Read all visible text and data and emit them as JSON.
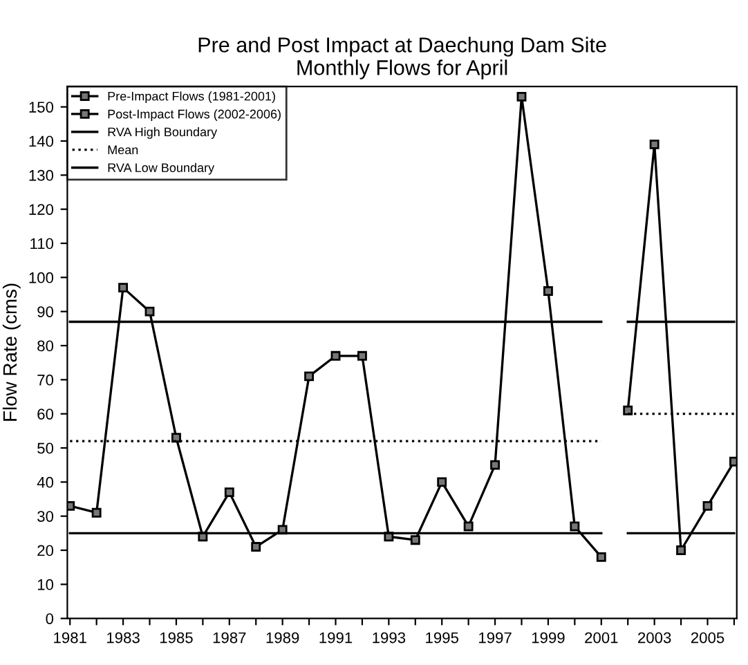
{
  "chart_data": {
    "type": "line",
    "title": "Pre and Post Impact at Daechung Dam Site\nMonthly Flows for April",
    "ylabel": "Flow Rate (cms)",
    "xlim": [
      1980.9,
      2006.1
    ],
    "xticks": [
      1981,
      {
        "value": 1982,
        "label": null
      },
      1983,
      {
        "value": 1984,
        "label": null
      },
      1985,
      {
        "value": 1986,
        "label": null
      },
      1987,
      {
        "value": 1988,
        "label": null
      },
      1989,
      {
        "value": 1990,
        "label": null
      },
      1991,
      {
        "value": 1992,
        "label": null
      },
      1993,
      {
        "value": 1994,
        "label": null
      },
      1995,
      {
        "value": 1996,
        "label": null
      },
      1997,
      {
        "value": 1998,
        "label": null
      },
      1999,
      {
        "value": 2000,
        "label": null
      },
      2001,
      {
        "value": 2002,
        "label": null
      },
      2003,
      {
        "value": 2004,
        "label": null
      },
      2005,
      {
        "value": 2006,
        "label": null
      }
    ],
    "ylim": [
      0,
      156
    ],
    "yticks": [
      0,
      10,
      20,
      30,
      40,
      50,
      60,
      70,
      80,
      90,
      100,
      110,
      120,
      130,
      140,
      150
    ],
    "grid": false,
    "legend": "top left",
    "series": [
      {
        "name": "Pre-Impact Flows (1981-2001)",
        "color": "#000000",
        "marker": "square",
        "line_style": "solid",
        "x": [
          1981,
          1982,
          1983,
          1984,
          1985,
          1986,
          1987,
          1988,
          1989,
          1990,
          1991,
          1992,
          1993,
          1994,
          1995,
          1996,
          1997,
          1998,
          1999,
          2000,
          2001
        ],
        "values": [
          33,
          31,
          97,
          90,
          53,
          24,
          37,
          21,
          26,
          71,
          77,
          77,
          24,
          23,
          40,
          27,
          45,
          153,
          96,
          27,
          18
        ]
      },
      {
        "name": "Post-Impact Flows (2002-2006)",
        "color": "#000000",
        "marker": "square",
        "line_style": "solid",
        "x": [
          2002,
          2003,
          2004,
          2005,
          2006
        ],
        "values": [
          61,
          139,
          20,
          33,
          46
        ]
      },
      {
        "name": "RVA High Boundary",
        "color": "#000000",
        "marker": "none",
        "line_style": "solid",
        "x": [
          1981,
          2001
        ],
        "values": [
          87,
          87
        ]
      },
      {
        "name": "Mean",
        "color": "#000000",
        "marker": "none",
        "line_style": "dotted",
        "x": [
          1981,
          2001
        ],
        "values": [
          52,
          52
        ]
      },
      {
        "name": "RVA Low Boundary",
        "color": "#000000",
        "marker": "none",
        "line_style": "solid",
        "x": [
          1981,
          2001
        ],
        "values": [
          25,
          25
        ]
      },
      {
        "color": "#000000",
        "marker": "none",
        "line_style": "solid",
        "x": [
          2002,
          2006
        ],
        "values": [
          87,
          87
        ]
      },
      {
        "color": "#000000",
        "marker": "none",
        "line_style": "dotted",
        "x": [
          2002,
          2006
        ],
        "values": [
          60,
          60
        ]
      },
      {
        "color": "#000000",
        "marker": "none",
        "line_style": "solid",
        "x": [
          2002,
          2006
        ],
        "values": [
          25,
          25
        ]
      }
    ]
  }
}
